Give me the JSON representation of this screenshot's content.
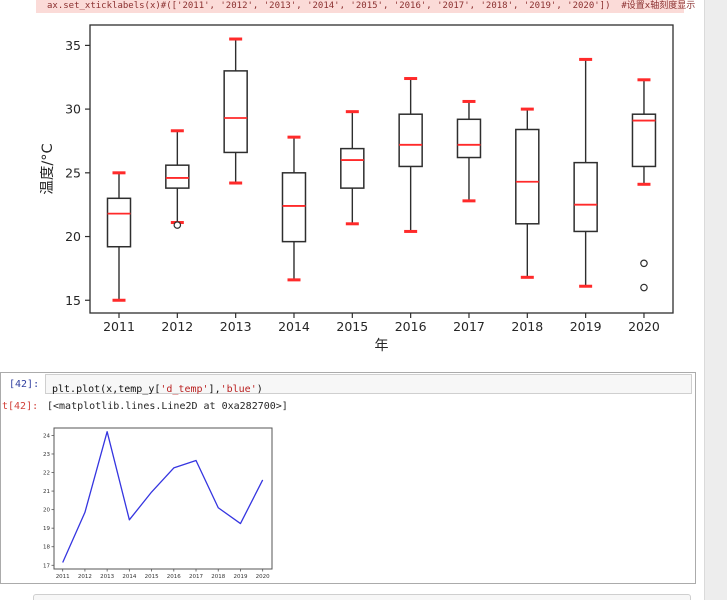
{
  "page": {
    "bg": "#ffffff",
    "gutter_color": "#ededed"
  },
  "top_code": {
    "text": "ax.set_xticklabels(x)#(['2011', '2012', '2013', '2014', '2015', '2016', '2017', '2018', '2019', '2020'])  #设置x轴刻度显示",
    "bg": "#fbdbd8",
    "color": "#8b3030"
  },
  "cell": {
    "input_prompt": "[42]:",
    "code_segments": [
      {
        "text": "plt.plot(x,temp_y[",
        "type": "code"
      },
      {
        "text": "'d_temp'",
        "type": "string"
      },
      {
        "text": "],",
        "type": "code"
      },
      {
        "text": "'blue'",
        "type": "string"
      },
      {
        "text": ")",
        "type": "code"
      }
    ],
    "output_prompt": "t[42]:",
    "output_text": "[<matplotlib.lines.Line2D at 0xa282700>]",
    "prompt_in_color": "#303f9f",
    "prompt_out_color": "#d2413a",
    "string_color": "#ba2121"
  },
  "chart_data": [
    {
      "type": "boxplot",
      "title": "",
      "xlabel": "年",
      "ylabel": "温度/°C",
      "categories": [
        "2011",
        "2012",
        "2013",
        "2014",
        "2015",
        "2016",
        "2017",
        "2018",
        "2019",
        "2020"
      ],
      "yticks": [
        15,
        20,
        25,
        30,
        35
      ],
      "ylim": [
        14.0,
        36.6
      ],
      "grid": false,
      "series": [
        {
          "category": "2011",
          "whisker_low": 15.0,
          "q1": 19.2,
          "median": 21.8,
          "q3": 23.0,
          "whisker_high": 25.0,
          "outliers": []
        },
        {
          "category": "2012",
          "whisker_low": 21.1,
          "q1": 23.8,
          "median": 24.6,
          "q3": 25.6,
          "whisker_high": 28.3,
          "outliers": [
            20.9
          ]
        },
        {
          "category": "2013",
          "whisker_low": 24.2,
          "q1": 26.6,
          "median": 29.3,
          "q3": 33.0,
          "whisker_high": 35.5,
          "outliers": []
        },
        {
          "category": "2014",
          "whisker_low": 16.6,
          "q1": 19.6,
          "median": 22.4,
          "q3": 25.0,
          "whisker_high": 27.8,
          "outliers": []
        },
        {
          "category": "2015",
          "whisker_low": 21.0,
          "q1": 23.8,
          "median": 26.0,
          "q3": 26.9,
          "whisker_high": 29.8,
          "outliers": []
        },
        {
          "category": "2016",
          "whisker_low": 20.4,
          "q1": 25.5,
          "median": 27.2,
          "q3": 29.6,
          "whisker_high": 32.4,
          "outliers": []
        },
        {
          "category": "2017",
          "whisker_low": 22.8,
          "q1": 26.2,
          "median": 27.2,
          "q3": 29.2,
          "whisker_high": 30.6,
          "outliers": []
        },
        {
          "category": "2018",
          "whisker_low": 16.8,
          "q1": 21.0,
          "median": 24.3,
          "q3": 28.4,
          "whisker_high": 30.0,
          "outliers": []
        },
        {
          "category": "2019",
          "whisker_low": 16.1,
          "q1": 20.4,
          "median": 22.5,
          "q3": 25.8,
          "whisker_high": 33.9,
          "outliers": []
        },
        {
          "category": "2020",
          "whisker_low": 24.1,
          "q1": 25.5,
          "median": 29.1,
          "q3": 29.6,
          "whisker_high": 32.3,
          "outliers": [
            17.9,
            16.0
          ]
        }
      ],
      "colors": {
        "box_edge": "#2e2e2e",
        "whisker": "#2e2e2e",
        "median": "#ff2a2a",
        "cap": "#ff2a2a",
        "outlier_edge": "#2e2e2e",
        "text": "#262626"
      }
    },
    {
      "type": "line",
      "title": "",
      "xlabel": "",
      "ylabel": "",
      "categories": [
        "2011",
        "2012",
        "2013",
        "2014",
        "2015",
        "2016",
        "2017",
        "2018",
        "2019",
        "2020"
      ],
      "values": [
        17.15,
        19.85,
        24.2,
        19.45,
        20.95,
        22.25,
        22.65,
        20.1,
        19.25,
        21.6
      ],
      "yticks": [
        17,
        18,
        19,
        20,
        21,
        22,
        23,
        24
      ],
      "ylim": [
        16.8,
        24.4
      ],
      "grid": false,
      "color": "#3535e0",
      "frame_color": "#555555",
      "text_color": "#333333"
    }
  ]
}
